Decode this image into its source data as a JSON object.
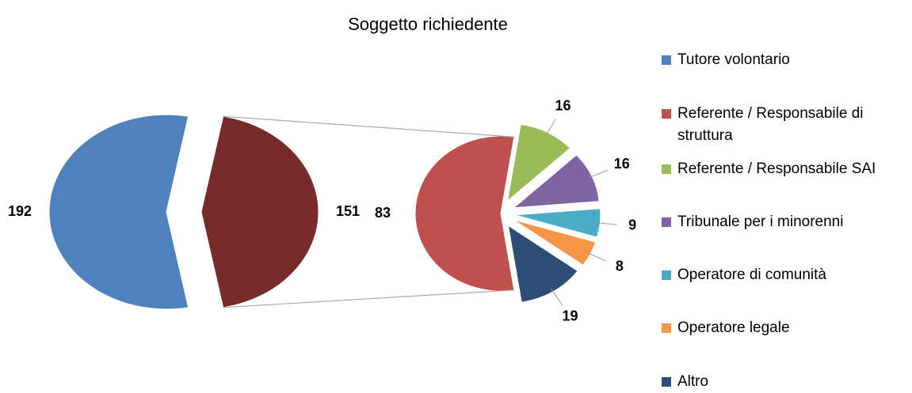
{
  "chart_data": [
    {
      "type": "pie",
      "title": "Soggetto richiedente",
      "categories": [
        "Tutore volontario",
        null
      ],
      "values": [
        192,
        151
      ],
      "colors": [
        "#4f81bd",
        "#772c2a"
      ]
    },
    {
      "type": "pie",
      "categories": [
        "Referente / Responsabile di struttura",
        "Referente / Responsabile SAI",
        "Tribunale per i minorenni",
        "Operatore di comunità",
        "Operatore legale",
        "Altro"
      ],
      "values": [
        83,
        16,
        16,
        9,
        8,
        19
      ],
      "colors": [
        "#c0504d",
        "#9bbb59",
        "#8064a2",
        "#4bacc6",
        "#f79646",
        "#2c4d75"
      ]
    }
  ]
}
